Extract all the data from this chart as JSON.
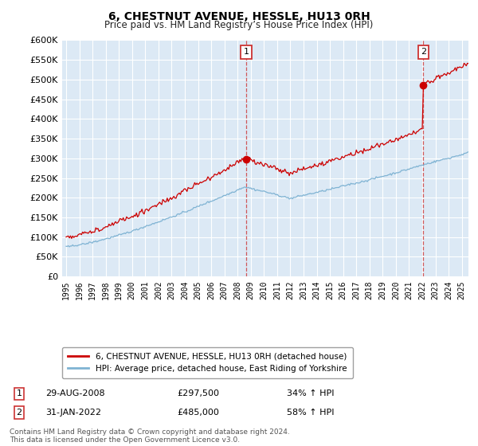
{
  "title": "6, CHESTNUT AVENUE, HESSLE, HU13 0RH",
  "subtitle": "Price paid vs. HM Land Registry’s House Price Index (HPI)",
  "legend_line1": "6, CHESTNUT AVENUE, HESSLE, HU13 0RH (detached house)",
  "legend_line2": "HPI: Average price, detached house, East Riding of Yorkshire",
  "sale1_date": "29-AUG-2008",
  "sale1_price": 297500,
  "sale1_label": "34% ↑ HPI",
  "sale2_date": "31-JAN-2022",
  "sale2_price": 485000,
  "sale2_label": "58% ↑ HPI",
  "footer": "Contains HM Land Registry data © Crown copyright and database right 2024.\nThis data is licensed under the Open Government Licence v3.0.",
  "red_color": "#cc0000",
  "blue_color": "#7fb3d3",
  "bg_color": "#dce9f5",
  "annotation_box_color": "#cc3333",
  "ylim": [
    0,
    600000
  ],
  "yticks": [
    0,
    50000,
    100000,
    150000,
    200000,
    250000,
    300000,
    350000,
    400000,
    450000,
    500000,
    550000,
    600000
  ],
  "xlim_start": 1994.7,
  "xlim_end": 2025.5
}
